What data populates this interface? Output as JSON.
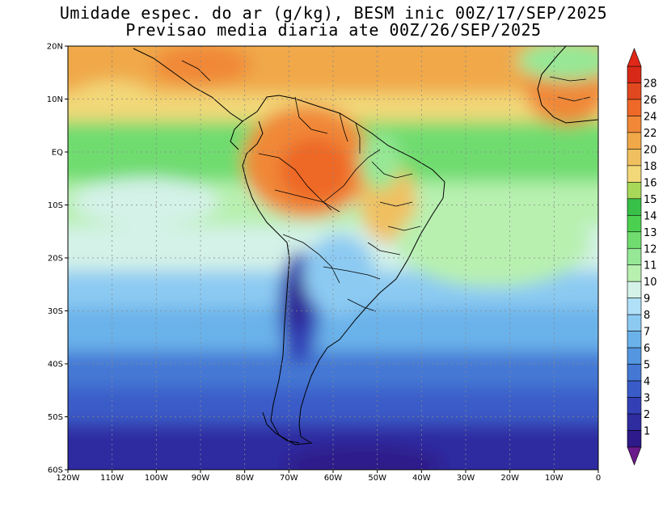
{
  "title": {
    "line1": "Umidade espec. do ar (g/kg), BESM inic 00Z/17/SEP/2025",
    "line2": "Previsao media diaria ate 00Z/26/SEP/2025"
  },
  "map": {
    "lat_labels": [
      "20N",
      "10N",
      "EQ",
      "10S",
      "20S",
      "30S",
      "40S",
      "50S",
      "60S"
    ],
    "lon_labels": [
      "120W",
      "110W",
      "100W",
      "90W",
      "80W",
      "70W",
      "60W",
      "50W",
      "40W",
      "30W",
      "20W",
      "10W",
      "0"
    ]
  },
  "colorbar": {
    "labels": [
      "1",
      "2",
      "3",
      "4",
      "5",
      "6",
      "7",
      "8",
      "9",
      "10",
      "11",
      "12",
      "13",
      "14",
      "15",
      "16",
      "18",
      "20",
      "22",
      "24",
      "26",
      "28"
    ],
    "colors": [
      "#2e1a8a",
      "#2f2ca0",
      "#3340b5",
      "#3a5cc8",
      "#4478d4",
      "#5496e0",
      "#6bb2ea",
      "#8ccaf2",
      "#b0e0f8",
      "#d4f2e8",
      "#b8f0b0",
      "#96e896",
      "#70dc70",
      "#4cd050",
      "#38c048",
      "#a8d858",
      "#f2d878",
      "#f0c060",
      "#f0a848",
      "#f08838",
      "#ee6828",
      "#e04820",
      "#d82818"
    ],
    "under_color": "#6a1a8a",
    "over_color": "#e02818"
  }
}
